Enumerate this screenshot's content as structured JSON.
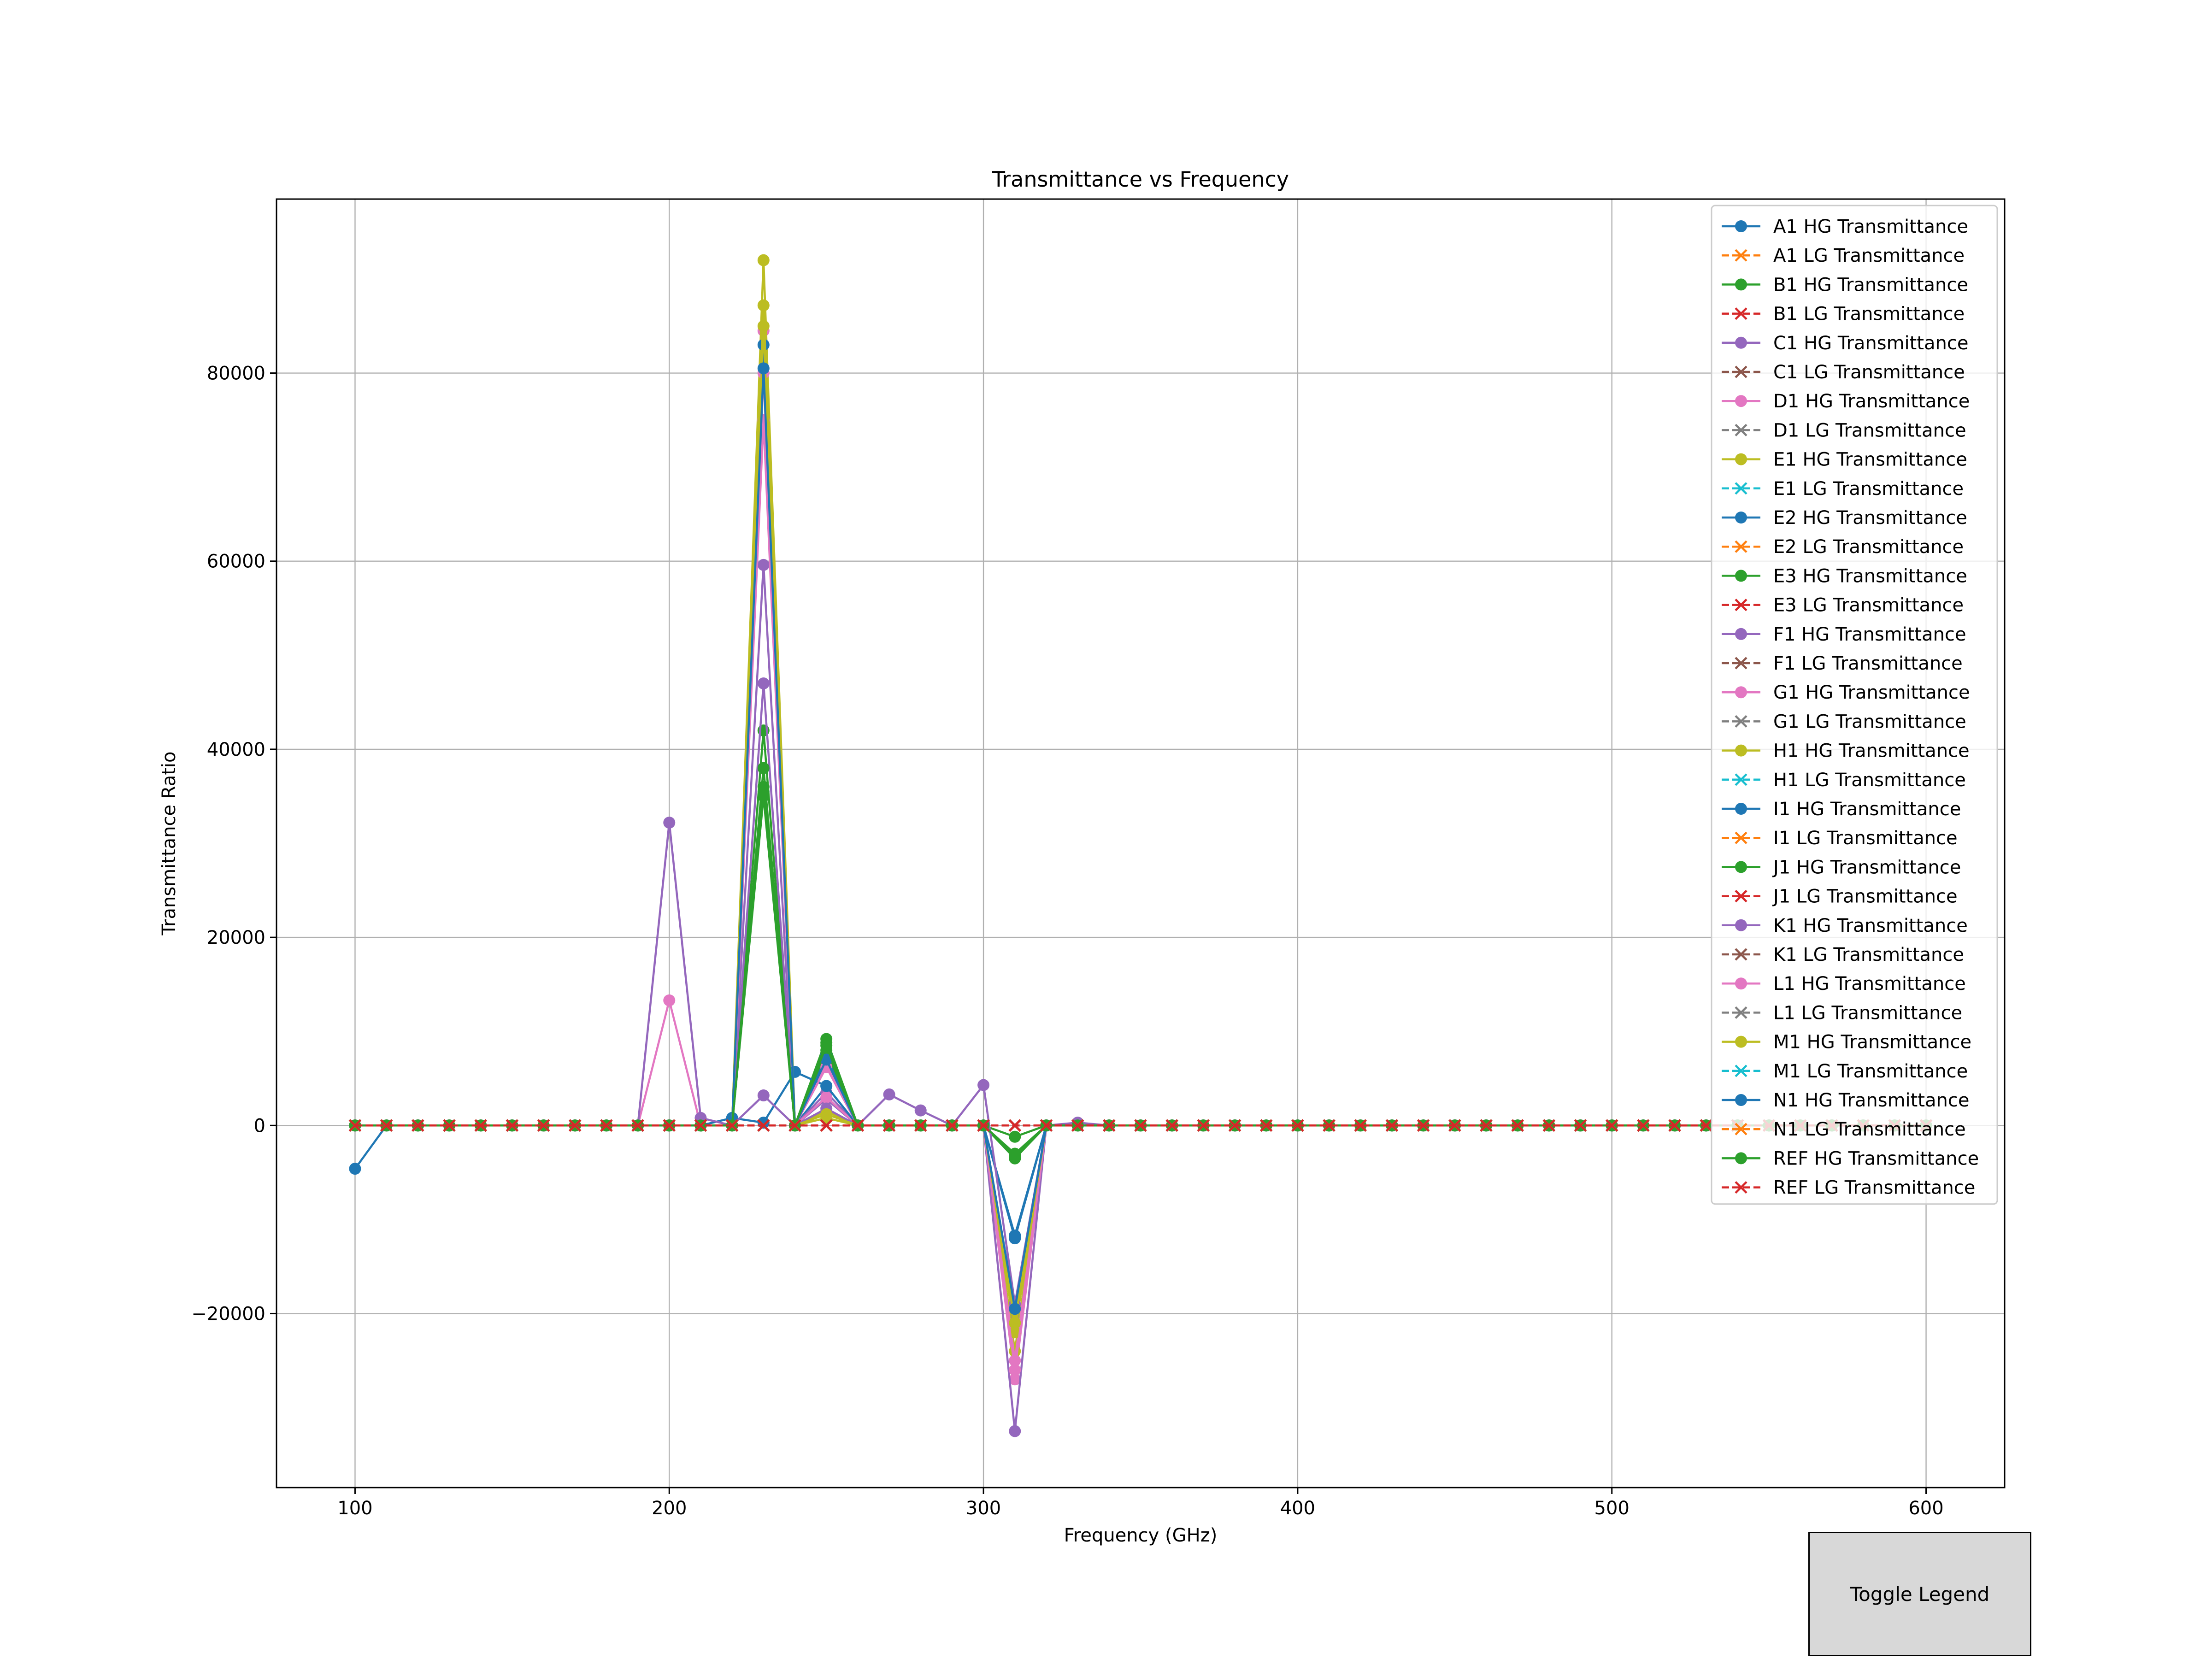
{
  "toggle_button": {
    "label": "Toggle Legend"
  },
  "chart_data": {
    "type": "line",
    "title": "Transmittance vs Frequency",
    "xlabel": "Frequency (GHz)",
    "ylabel": "Transmittance Ratio",
    "xlim": [
      75,
      625
    ],
    "ylim": [
      -38500,
      98500
    ],
    "xticks": [
      100,
      200,
      300,
      400,
      500,
      600
    ],
    "yticks": [
      -20000,
      0,
      20000,
      40000,
      60000,
      80000
    ],
    "ytick_labels": [
      "−20000",
      "0",
      "20000",
      "40000",
      "60000",
      "80000"
    ],
    "grid": true,
    "legend_position": "top-right",
    "x": [
      100,
      110,
      120,
      130,
      140,
      150,
      160,
      170,
      180,
      190,
      200,
      210,
      220,
      230,
      240,
      250,
      260,
      270,
      280,
      290,
      300,
      310,
      320,
      330,
      340,
      350,
      360,
      370,
      380,
      390,
      400,
      410,
      420,
      430,
      440,
      450,
      460,
      470,
      480,
      490,
      500,
      510,
      520,
      530,
      540,
      550,
      560,
      570,
      580,
      590,
      600
    ],
    "series": [
      {
        "name": "A1 HG Transmittance",
        "color": "#1f77b4",
        "style": "hg",
        "spikes": {
          "100": -4600,
          "230": 35500,
          "250": 4200,
          "310": -19500
        }
      },
      {
        "name": "A1 LG Transmittance",
        "color": "#ff7f0e",
        "style": "lg",
        "spikes": {}
      },
      {
        "name": "B1 HG Transmittance",
        "color": "#2ca02c",
        "style": "hg",
        "spikes": {
          "230": 42000,
          "250": 9200,
          "310": -1200
        }
      },
      {
        "name": "B1 LG Transmittance",
        "color": "#d62728",
        "style": "lg",
        "spikes": {}
      },
      {
        "name": "C1 HG Transmittance",
        "color": "#9467bd",
        "style": "hg",
        "spikes": {
          "230": 47000,
          "250": 2800,
          "310": -20000
        }
      },
      {
        "name": "C1 LG Transmittance",
        "color": "#8c564b",
        "style": "lg",
        "spikes": {}
      },
      {
        "name": "D1 HG Transmittance",
        "color": "#e377c2",
        "style": "hg",
        "spikes": {
          "230": 84500,
          "250": 6500,
          "310": -27000
        }
      },
      {
        "name": "D1 LG Transmittance",
        "color": "#7f7f7f",
        "style": "lg",
        "spikes": {}
      },
      {
        "name": "E1 HG Transmittance",
        "color": "#bcbd22",
        "style": "hg",
        "spikes": {
          "230": 92000,
          "250": 1500,
          "310": -24000
        }
      },
      {
        "name": "E1 LG Transmittance",
        "color": "#17becf",
        "style": "lg",
        "spikes": {}
      },
      {
        "name": "E2 HG Transmittance",
        "color": "#1f77b4",
        "style": "hg",
        "spikes": {
          "230": 83000,
          "250": 7500,
          "310": -11700
        }
      },
      {
        "name": "E2 LG Transmittance",
        "color": "#ff7f0e",
        "style": "lg",
        "spikes": {}
      },
      {
        "name": "E3 HG Transmittance",
        "color": "#2ca02c",
        "style": "hg",
        "spikes": {
          "230": 38000,
          "250": 8800,
          "310": -3500
        }
      },
      {
        "name": "E3 LG Transmittance",
        "color": "#d62728",
        "style": "lg",
        "spikes": {}
      },
      {
        "name": "F1 HG Transmittance",
        "color": "#9467bd",
        "style": "hg",
        "spikes": {
          "230": 59600,
          "250": 3500,
          "310": -32500
        }
      },
      {
        "name": "F1 LG Transmittance",
        "color": "#8c564b",
        "style": "lg",
        "spikes": {}
      },
      {
        "name": "G1 HG Transmittance",
        "color": "#e377c2",
        "style": "hg",
        "spikes": {
          "200": 13300,
          "230": 75000,
          "250": 3000,
          "310": -25000
        }
      },
      {
        "name": "G1 LG Transmittance",
        "color": "#7f7f7f",
        "style": "lg",
        "spikes": {}
      },
      {
        "name": "H1 HG Transmittance",
        "color": "#bcbd22",
        "style": "hg",
        "spikes": {
          "230": 87200,
          "250": 800,
          "310": -22000
        }
      },
      {
        "name": "H1 LG Transmittance",
        "color": "#17becf",
        "style": "lg",
        "spikes": {}
      },
      {
        "name": "I1 HG Transmittance",
        "color": "#1f77b4",
        "style": "hg",
        "spikes": {
          "220": 800,
          "230": 300,
          "240": 5700,
          "250": 4200,
          "310": -12000
        }
      },
      {
        "name": "I1 LG Transmittance",
        "color": "#ff7f0e",
        "style": "lg",
        "spikes": {}
      },
      {
        "name": "J1 HG Transmittance",
        "color": "#2ca02c",
        "style": "hg",
        "spikes": {
          "230": 35000,
          "250": 8000,
          "310": -3200
        }
      },
      {
        "name": "J1 LG Transmittance",
        "color": "#d62728",
        "style": "lg",
        "spikes": {}
      },
      {
        "name": "K1 HG Transmittance",
        "color": "#9467bd",
        "style": "hg",
        "spikes": {
          "200": 32200,
          "210": 800,
          "230": 3200,
          "250": 1800,
          "270": 3300,
          "280": 1600,
          "300": 4300,
          "310": -19000,
          "330": 300
        }
      },
      {
        "name": "K1 LG Transmittance",
        "color": "#8c564b",
        "style": "lg",
        "spikes": {}
      },
      {
        "name": "L1 HG Transmittance",
        "color": "#e377c2",
        "style": "hg",
        "spikes": {
          "230": 80000,
          "250": 6200,
          "310": -26000
        }
      },
      {
        "name": "L1 LG Transmittance",
        "color": "#7f7f7f",
        "style": "lg",
        "spikes": {}
      },
      {
        "name": "M1 HG Transmittance",
        "color": "#bcbd22",
        "style": "hg",
        "spikes": {
          "230": 85000,
          "250": 1200,
          "310": -21000
        }
      },
      {
        "name": "M1 LG Transmittance",
        "color": "#17becf",
        "style": "lg",
        "spikes": {}
      },
      {
        "name": "N1 HG Transmittance",
        "color": "#1f77b4",
        "style": "hg",
        "spikes": {
          "230": 80500,
          "250": 7000,
          "310": -19500
        }
      },
      {
        "name": "N1 LG Transmittance",
        "color": "#ff7f0e",
        "style": "lg",
        "spikes": {}
      },
      {
        "name": "REF HG Transmittance",
        "color": "#2ca02c",
        "style": "hg",
        "spikes": {
          "230": 36000,
          "250": 8500,
          "310": -3000
        }
      },
      {
        "name": "REF LG Transmittance",
        "color": "#d62728",
        "style": "lg",
        "spikes": {}
      }
    ]
  }
}
